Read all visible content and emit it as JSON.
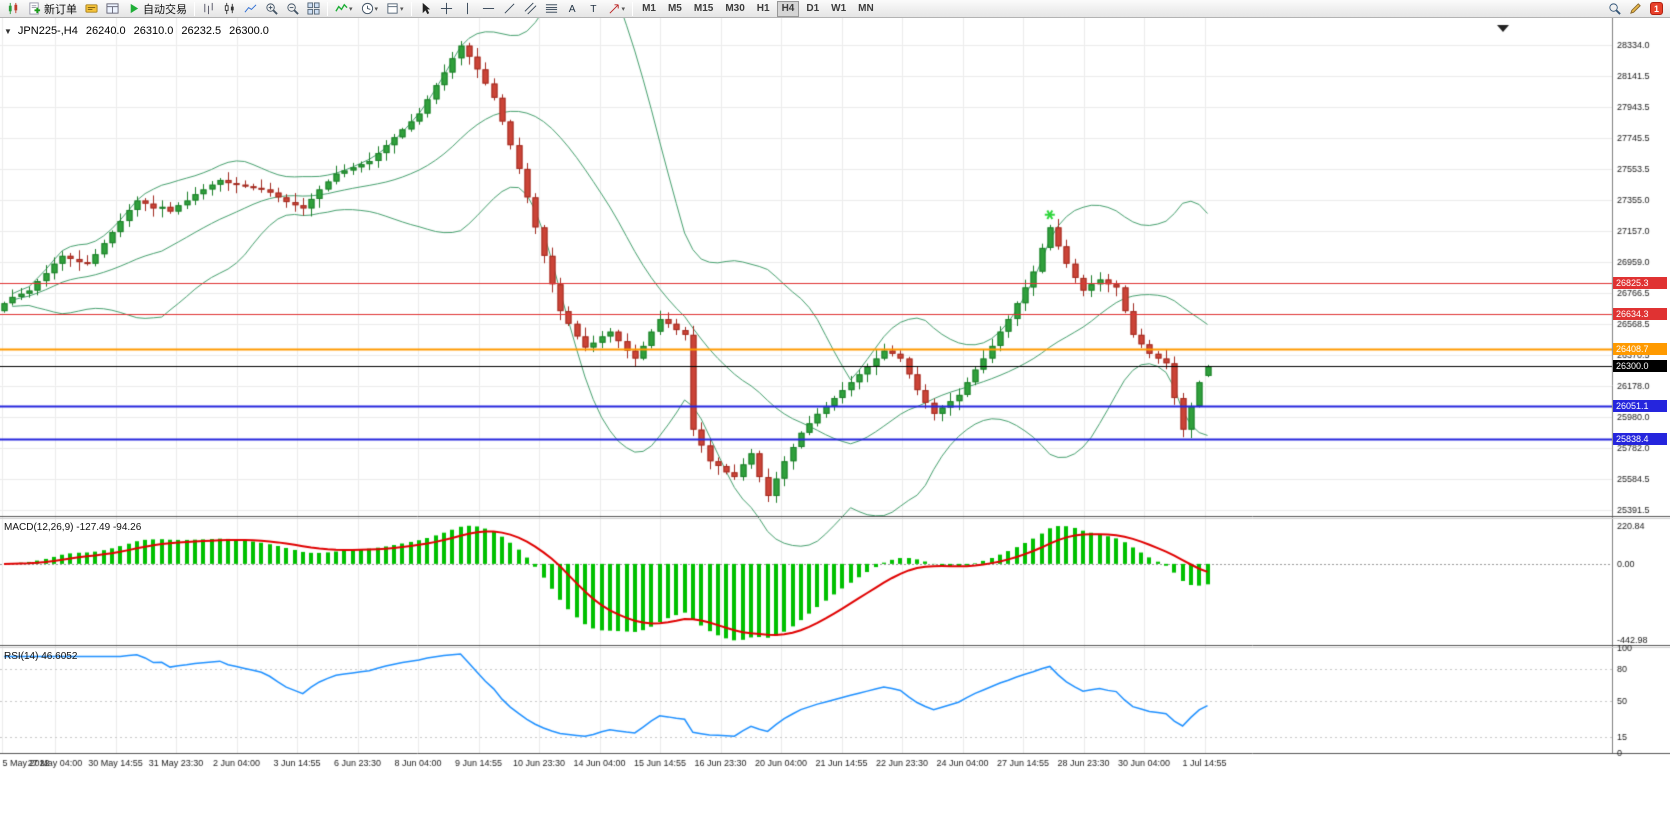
{
  "toolbar": {
    "groups": [
      {
        "name": "standard",
        "items": [
          {
            "name": "new-chart-button",
            "icon": "candle-chart-icon"
          },
          {
            "name": "new-order-button",
            "icon": "new-order-icon",
            "label": "新订单"
          },
          {
            "name": "quotes-button",
            "icon": "quotes-icon"
          },
          {
            "name": "data-window-button",
            "icon": "data-window-icon"
          },
          {
            "name": "autotrading-button",
            "icon": "autotrading-icon",
            "label": "自动交易"
          }
        ]
      },
      {
        "name": "chart-type",
        "items": [
          {
            "name": "bar-chart-button",
            "icon": "bar-chart-icon"
          },
          {
            "name": "candlestick-button",
            "icon": "candlestick-icon"
          },
          {
            "name": "line-chart-button",
            "icon": "line-chart-icon"
          },
          {
            "name": "zoom-in-button",
            "icon": "zoom-in-icon"
          },
          {
            "name": "zoom-out-button",
            "icon": "zoom-out-icon"
          },
          {
            "name": "tile-windows-button",
            "icon": "tile-windows-icon"
          }
        ]
      },
      {
        "name": "navigation",
        "items": [
          {
            "name": "indicators-button",
            "icon": "indicators-icon",
            "dropdown": true
          },
          {
            "name": "periods-button",
            "icon": "clock-icon",
            "dropdown": true
          },
          {
            "name": "templates-button",
            "icon": "template-icon",
            "dropdown": true
          }
        ]
      },
      {
        "name": "objects",
        "items": [
          {
            "name": "cursor-button",
            "icon": "cursor-icon"
          },
          {
            "name": "crosshair-button",
            "icon": "crosshair-icon"
          },
          {
            "name": "vertical-line-button",
            "icon": "vertical-line-icon"
          },
          {
            "name": "horizontal-line-button",
            "icon": "horizontal-line-icon"
          },
          {
            "name": "trendline-button",
            "icon": "trendline-icon"
          },
          {
            "name": "channel-button",
            "icon": "channel-icon"
          },
          {
            "name": "fibonacci-button",
            "icon": "fibonacci-icon"
          },
          {
            "name": "text-button",
            "icon": "text-icon"
          },
          {
            "name": "label-button",
            "icon": "label-icon"
          },
          {
            "name": "arrows-button",
            "icon": "arrow-icon",
            "dropdown": true
          }
        ]
      },
      {
        "name": "timeframes",
        "items": [
          {
            "name": "tf-m1-button",
            "label": "M1"
          },
          {
            "name": "tf-m5-button",
            "label": "M5"
          },
          {
            "name": "tf-m15-button",
            "label": "M15"
          },
          {
            "name": "tf-m30-button",
            "label": "M30"
          },
          {
            "name": "tf-h1-button",
            "label": "H1"
          },
          {
            "name": "tf-h4-button",
            "label": "H4",
            "active": true
          },
          {
            "name": "tf-d1-button",
            "label": "D1"
          },
          {
            "name": "tf-w1-button",
            "label": "W1"
          },
          {
            "name": "tf-mn-button",
            "label": "MN"
          }
        ]
      }
    ],
    "right": [
      {
        "name": "search-button",
        "icon": "magnifier-icon"
      },
      {
        "name": "quick-edit-button",
        "icon": "pencil-icon"
      },
      {
        "name": "notifications-badge",
        "badge": "1"
      }
    ]
  },
  "chart": {
    "header": {
      "symbol_period": "JPN225-,H4",
      "open": "26240.0",
      "high": "26310.0",
      "low": "26232.5",
      "close": "26300.0"
    },
    "price_scale": [
      "28334.0",
      "28141.5",
      "27943.5",
      "27745.5",
      "27553.5",
      "27355.0",
      "27157.0",
      "26959.0",
      "26766.5",
      "26568.5",
      "26370.5",
      "26178.0",
      "25980.0",
      "25782.0",
      "25584.5",
      "25391.5"
    ],
    "time_labels": [
      "5 May 2022",
      "27 May 04:00",
      "30 May 14:55",
      "31 May 23:30",
      "2 Jun 04:00",
      "3 Jun 14:55",
      "6 Jun 23:30",
      "8 Jun 04:00",
      "9 Jun 14:55",
      "10 Jun 23:30",
      "14 Jun 04:00",
      "15 Jun 14:55",
      "16 Jun 23:30",
      "20 Jun 04:00",
      "21 Jun 14:55",
      "22 Jun 23:30",
      "24 Jun 04:00",
      "27 Jun 14:55",
      "28 Jun 23:30",
      "30 Jun 04:00",
      "1 Jul 14:55"
    ],
    "price_lines": [
      {
        "value": 26825.3,
        "label": "26825.3",
        "color": "#e03232",
        "width": 1
      },
      {
        "value": 26634.3,
        "label": "26634.3",
        "color": "#e03232",
        "width": 1
      },
      {
        "value": 26408.7,
        "label": "26408.7",
        "color": "#ff9a00",
        "width": 2
      },
      {
        "value": 26300.0,
        "label": "26300.0",
        "color": "#000000",
        "width": 1,
        "role": "current-price"
      },
      {
        "value": 26051.1,
        "label": "26051.1",
        "color": "#2525dd",
        "width": 2
      },
      {
        "value": 25838.4,
        "label": "25838.4",
        "color": "#2525dd",
        "width": 2
      }
    ],
    "marker": {
      "name": "buy-signal-marker",
      "time_index": 126,
      "price": 27260,
      "color": "#2fd63c"
    }
  },
  "macd": {
    "label": "MACD(12,26,9) -127.49 -94.26",
    "scale": [
      "220.84",
      "0.00",
      "-442.98"
    ],
    "params": {
      "fast": 12,
      "slow": 26,
      "signal": 9
    }
  },
  "rsi": {
    "label": "RSI(14) 46.6052",
    "scale": [
      "100",
      "80",
      "50",
      "15",
      "0"
    ],
    "levels": [
      80,
      50,
      15
    ],
    "period": 14
  },
  "colors": {
    "grid": "#ececec",
    "bull_candle": "#30a13c",
    "bull_border": "#1d7f2a",
    "bear_candle": "#cc4437",
    "bear_border": "#a22c22",
    "bollinger": "#46a06e",
    "macd_histogram": "#00c000",
    "macd_signal": "#e00000",
    "rsi_line": "#1e90ff"
  },
  "chart_data": {
    "type": "candlestick",
    "title": "JPN225-,H4",
    "y_range": [
      25391.5,
      28334.0
    ],
    "last_candle": {
      "open": 26240.0,
      "high": 26310.0,
      "low": 26232.5,
      "close": 26300.0
    },
    "series": {
      "name": "JPN225- H4",
      "first_open": 26650,
      "closes": [
        26700,
        26740,
        26760,
        26780,
        26840,
        26890,
        26950,
        27000,
        26980,
        26960,
        26950,
        27010,
        27080,
        27150,
        27220,
        27290,
        27350,
        27330,
        27300,
        27310,
        27280,
        27320,
        27350,
        27390,
        27420,
        27450,
        27480,
        27460,
        27450,
        27440,
        27430,
        27420,
        27400,
        27370,
        27340,
        27320,
        27300,
        27360,
        27420,
        27470,
        27520,
        27540,
        27560,
        27580,
        27600,
        27650,
        27700,
        27750,
        27800,
        27850,
        27900,
        27990,
        28080,
        28160,
        28250,
        28330,
        28260,
        28180,
        28090,
        28000,
        27850,
        27700,
        27550,
        27370,
        27180,
        27000,
        26820,
        26650,
        26570,
        26490,
        26420,
        26450,
        26490,
        26520,
        26460,
        26400,
        26350,
        26430,
        26520,
        26600,
        26570,
        26530,
        26500,
        25900,
        25800,
        25700,
        25670,
        25630,
        25600,
        25680,
        25750,
        25600,
        25480,
        25590,
        25700,
        25790,
        25880,
        25940,
        26000,
        26050,
        26100,
        26150,
        26200,
        26250,
        26300,
        26350,
        26400,
        26380,
        26350,
        26250,
        26150,
        26070,
        26000,
        26040,
        26080,
        26120,
        26200,
        26280,
        26350,
        26430,
        26520,
        26600,
        26700,
        26800,
        26900,
        27050,
        27180,
        27060,
        26950,
        26860,
        26780,
        26820,
        26850,
        26820,
        26800,
        26650,
        26500,
        26440,
        26380,
        26350,
        26320,
        26100,
        25900,
        26050,
        26200,
        26300
      ]
    },
    "overlays": [
      {
        "name": "Bollinger Bands",
        "period": 20,
        "deviation": 2
      },
      {
        "name": "MACD",
        "fast": 12,
        "slow": 26,
        "signal": 9,
        "current_values": "-127.49 -94.26",
        "scale": [
          220.84,
          0.0,
          -442.98
        ]
      },
      {
        "name": "RSI",
        "period": 14,
        "current_value": 46.6052,
        "scale": [
          100,
          80,
          50,
          15,
          0
        ]
      }
    ]
  }
}
